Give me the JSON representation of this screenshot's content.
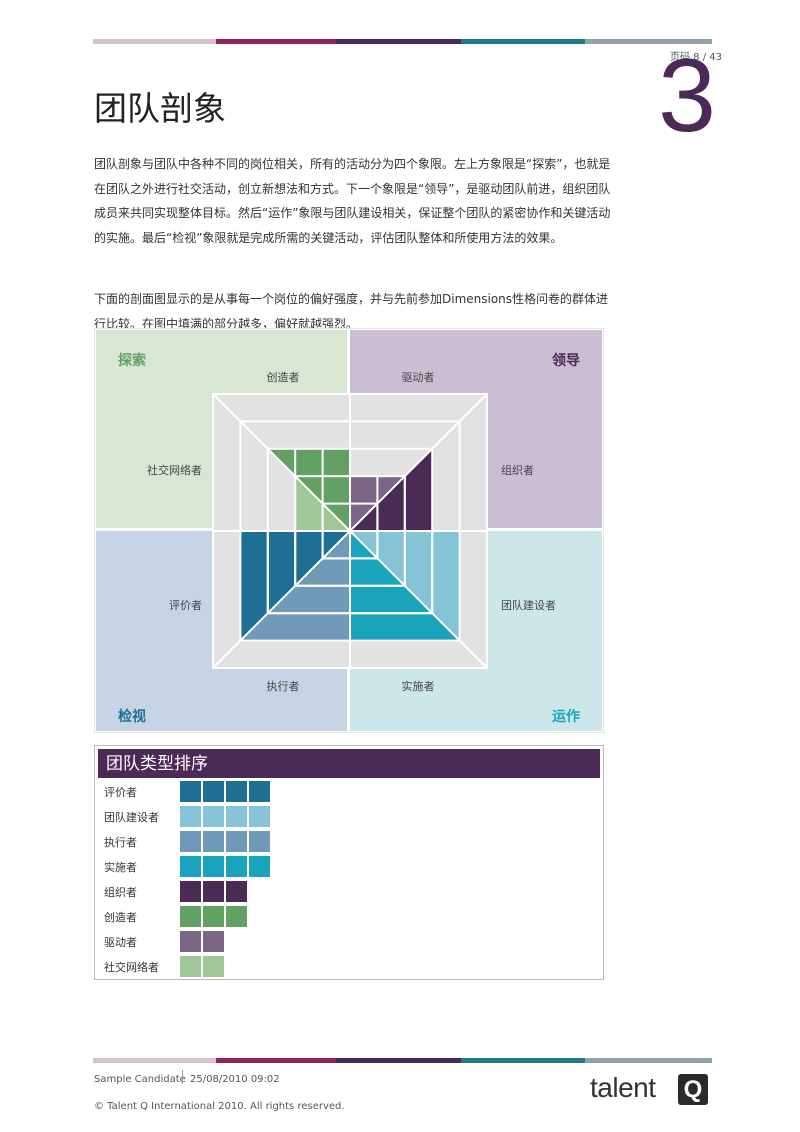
{
  "header": {
    "page_number": "页码 8 / 43",
    "chapter_number": "3",
    "bar_colors": [
      "#d7c3cf",
      "#8e2460",
      "#4b2a55",
      "#1d7c86",
      "#8fa3a8"
    ]
  },
  "title": "团队剖象",
  "paragraph1": "团队剖象与团队中各种不同的岗位相关，所有的活动分为四个象限。左上方象限是“探索”，也就是在团队之外进行社交活动，创立新想法和方式。下一个象限是“领导”，是驱动团队前进，组织团队成员来共同实现整体目标。然后“运作”象限与团队建设相关，保证整个团队的紧密协作和关键活动的实施。最后“检视”象限就是完成所需的关键活动，评估团队整体和所使用方法的效果。",
  "paragraph2": "下面的剖面图显示的是从事每一个岗位的偏好强度，并与先前参加Dimensions性格问卷的群体进行比较。在图中填满的部分越多，偏好就越强烈。",
  "profile": {
    "quadrants": {
      "explore": {
        "label": "探索",
        "color": "#62a063",
        "bg": "#d8e6d4"
      },
      "lead": {
        "label": "领导",
        "color": "#4b2a55",
        "bg": "#cbbdd2"
      },
      "review": {
        "label": "检视",
        "color": "#1f6e94",
        "bg": "#c6d4e6"
      },
      "operate": {
        "label": "运作",
        "color": "#1aa3bd",
        "bg": "#cde6e9"
      }
    },
    "roles": [
      {
        "name": "创造者",
        "score": 3,
        "color": "#62a063"
      },
      {
        "name": "驱动者",
        "score": 2,
        "color": "#7b6685"
      },
      {
        "name": "组织者",
        "score": 3,
        "color": "#4b2a55"
      },
      {
        "name": "团队建设者",
        "score": 4,
        "color": "#85c3d6"
      },
      {
        "name": "实施者",
        "score": 4,
        "color": "#1aa3bd"
      },
      {
        "name": "执行者",
        "score": 4,
        "color": "#6f9bb9"
      },
      {
        "name": "评价者",
        "score": 4,
        "color": "#1f6e94"
      },
      {
        "name": "社交网络者",
        "score": 2,
        "color": "#a1c697"
      }
    ]
  },
  "ranking": {
    "title": "团队类型排序",
    "items": [
      {
        "label": "评价者",
        "score": 4,
        "color": "#1f6e94"
      },
      {
        "label": "团队建设者",
        "score": 4,
        "color": "#85c3d6"
      },
      {
        "label": "执行者",
        "score": 4,
        "color": "#6f9bb9"
      },
      {
        "label": "实施者",
        "score": 4,
        "color": "#1aa3bd"
      },
      {
        "label": "组织者",
        "score": 3,
        "color": "#4b2a55"
      },
      {
        "label": "创造者",
        "score": 3,
        "color": "#62a063"
      },
      {
        "label": "驱动者",
        "score": 2,
        "color": "#7b6685"
      },
      {
        "label": "社交网络者",
        "score": 2,
        "color": "#a1c697"
      }
    ]
  },
  "footer": {
    "candidate": "Sample Candidate",
    "date": "25/08/2010 09:02",
    "copyright": "© Talent Q International 2010. All rights reserved.",
    "logo_text": "talent",
    "logo_mark": "Q"
  }
}
